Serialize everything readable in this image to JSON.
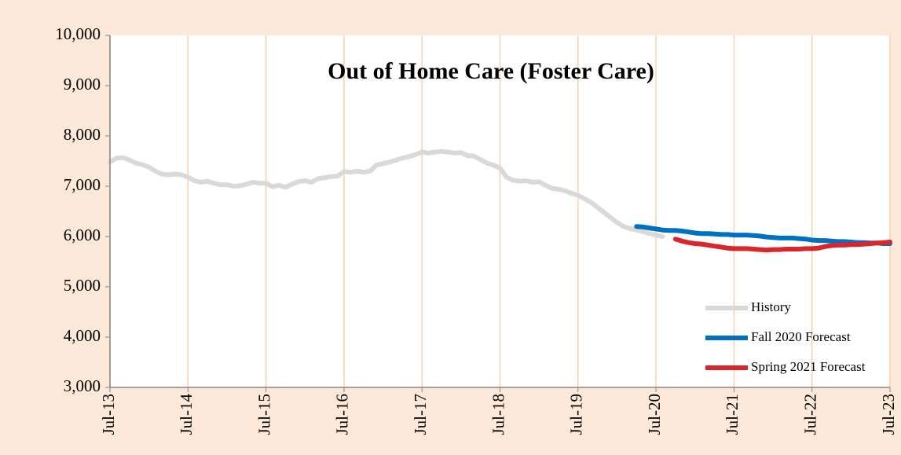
{
  "chart_data": {
    "type": "line",
    "title": "Out of Home Care (Foster Care)",
    "categories": [
      "Jul-13",
      null,
      null,
      null,
      null,
      null,
      null,
      null,
      null,
      null,
      null,
      null,
      "Jul-14",
      null,
      null,
      null,
      null,
      null,
      null,
      null,
      null,
      null,
      null,
      null,
      "Jul-15",
      null,
      null,
      null,
      null,
      null,
      null,
      null,
      null,
      null,
      null,
      null,
      "Jul-16",
      null,
      null,
      null,
      null,
      null,
      null,
      null,
      null,
      null,
      null,
      null,
      "Jul-17",
      null,
      null,
      null,
      null,
      null,
      null,
      null,
      null,
      null,
      null,
      null,
      "Jul-18",
      null,
      null,
      null,
      null,
      null,
      null,
      null,
      null,
      null,
      null,
      null,
      "Jul-19",
      null,
      null,
      null,
      null,
      null,
      null,
      null,
      null,
      null,
      null,
      null,
      "Jul-20",
      null,
      null,
      null,
      null,
      null,
      null,
      null,
      null,
      null,
      null,
      null,
      "Jul-21",
      null,
      null,
      null,
      null,
      null,
      null,
      null,
      null,
      null,
      null,
      null,
      "Jul-22",
      null,
      null,
      null,
      null,
      null,
      null,
      null,
      null,
      null,
      null,
      null,
      "Jul-23"
    ],
    "series": [
      {
        "name": "History",
        "color": "#d9d9d9",
        "values": [
          7480,
          7560,
          7570,
          7520,
          7460,
          7430,
          7380,
          7300,
          7240,
          7230,
          7240,
          7230,
          7180,
          7110,
          7080,
          7100,
          7060,
          7030,
          7030,
          7000,
          7010,
          7040,
          7080,
          7060,
          7060,
          6990,
          7020,
          6980,
          7040,
          7090,
          7110,
          7080,
          7150,
          7170,
          7190,
          7200,
          7290,
          7280,
          7300,
          7280,
          7300,
          7420,
          7450,
          7480,
          7520,
          7560,
          7590,
          7630,
          7680,
          7660,
          7680,
          7690,
          7680,
          7660,
          7670,
          7610,
          7600,
          7530,
          7460,
          7420,
          7360,
          7180,
          7120,
          7100,
          7110,
          7080,
          7090,
          7020,
          6960,
          6940,
          6910,
          6860,
          6820,
          6750,
          6680,
          6580,
          6480,
          6380,
          6280,
          6200,
          6160,
          6130,
          6100,
          6060,
          6030,
          6000,
          null,
          null,
          null,
          null,
          null,
          null,
          null,
          null,
          null,
          null,
          null,
          null,
          null,
          null,
          null,
          null,
          null,
          null,
          null,
          null,
          null,
          null,
          null,
          null,
          null,
          null,
          null,
          null,
          null,
          null,
          null,
          null,
          null,
          null,
          null
        ]
      },
      {
        "name": "Fall 2020 Forecast",
        "color": "#0070c0",
        "values": [
          null,
          null,
          null,
          null,
          null,
          null,
          null,
          null,
          null,
          null,
          null,
          null,
          null,
          null,
          null,
          null,
          null,
          null,
          null,
          null,
          null,
          null,
          null,
          null,
          null,
          null,
          null,
          null,
          null,
          null,
          null,
          null,
          null,
          null,
          null,
          null,
          null,
          null,
          null,
          null,
          null,
          null,
          null,
          null,
          null,
          null,
          null,
          null,
          null,
          null,
          null,
          null,
          null,
          null,
          null,
          null,
          null,
          null,
          null,
          null,
          null,
          null,
          null,
          null,
          null,
          null,
          null,
          null,
          null,
          null,
          null,
          null,
          null,
          null,
          null,
          null,
          null,
          null,
          null,
          null,
          null,
          6200,
          6190,
          6170,
          6150,
          6130,
          6120,
          6120,
          6110,
          6090,
          6070,
          6060,
          6060,
          6050,
          6040,
          6040,
          6030,
          6030,
          6030,
          6020,
          6010,
          5990,
          5980,
          5970,
          5970,
          5970,
          5960,
          5950,
          5930,
          5920,
          5920,
          5910,
          5900,
          5900,
          5890,
          5880,
          5880,
          5870,
          5870,
          5860,
          5860
        ]
      },
      {
        "name": "Spring 2021 Forecast",
        "color": "#d7262c",
        "values": [
          null,
          null,
          null,
          null,
          null,
          null,
          null,
          null,
          null,
          null,
          null,
          null,
          null,
          null,
          null,
          null,
          null,
          null,
          null,
          null,
          null,
          null,
          null,
          null,
          null,
          null,
          null,
          null,
          null,
          null,
          null,
          null,
          null,
          null,
          null,
          null,
          null,
          null,
          null,
          null,
          null,
          null,
          null,
          null,
          null,
          null,
          null,
          null,
          null,
          null,
          null,
          null,
          null,
          null,
          null,
          null,
          null,
          null,
          null,
          null,
          null,
          null,
          null,
          null,
          null,
          null,
          null,
          null,
          null,
          null,
          null,
          null,
          null,
          null,
          null,
          null,
          null,
          null,
          null,
          null,
          null,
          null,
          null,
          null,
          null,
          null,
          null,
          5950,
          5910,
          5880,
          5860,
          5850,
          5830,
          5810,
          5790,
          5770,
          5760,
          5760,
          5760,
          5750,
          5740,
          5730,
          5740,
          5740,
          5750,
          5750,
          5750,
          5760,
          5760,
          5770,
          5800,
          5820,
          5830,
          5830,
          5840,
          5840,
          5850,
          5860,
          5870,
          5880,
          5890
        ]
      }
    ],
    "ylim": [
      3000,
      10000
    ],
    "yticks": [
      {
        "value": 3000,
        "label": "3,000"
      },
      {
        "value": 4000,
        "label": "4,000"
      },
      {
        "value": 5000,
        "label": "5,000"
      },
      {
        "value": 6000,
        "label": "6,000"
      },
      {
        "value": 7000,
        "label": "7,000"
      },
      {
        "value": 8000,
        "label": "8,000"
      },
      {
        "value": 9000,
        "label": "9,000"
      },
      {
        "value": 10000,
        "label": "10,000"
      }
    ],
    "grid": "x",
    "legend": "bottom-right"
  }
}
